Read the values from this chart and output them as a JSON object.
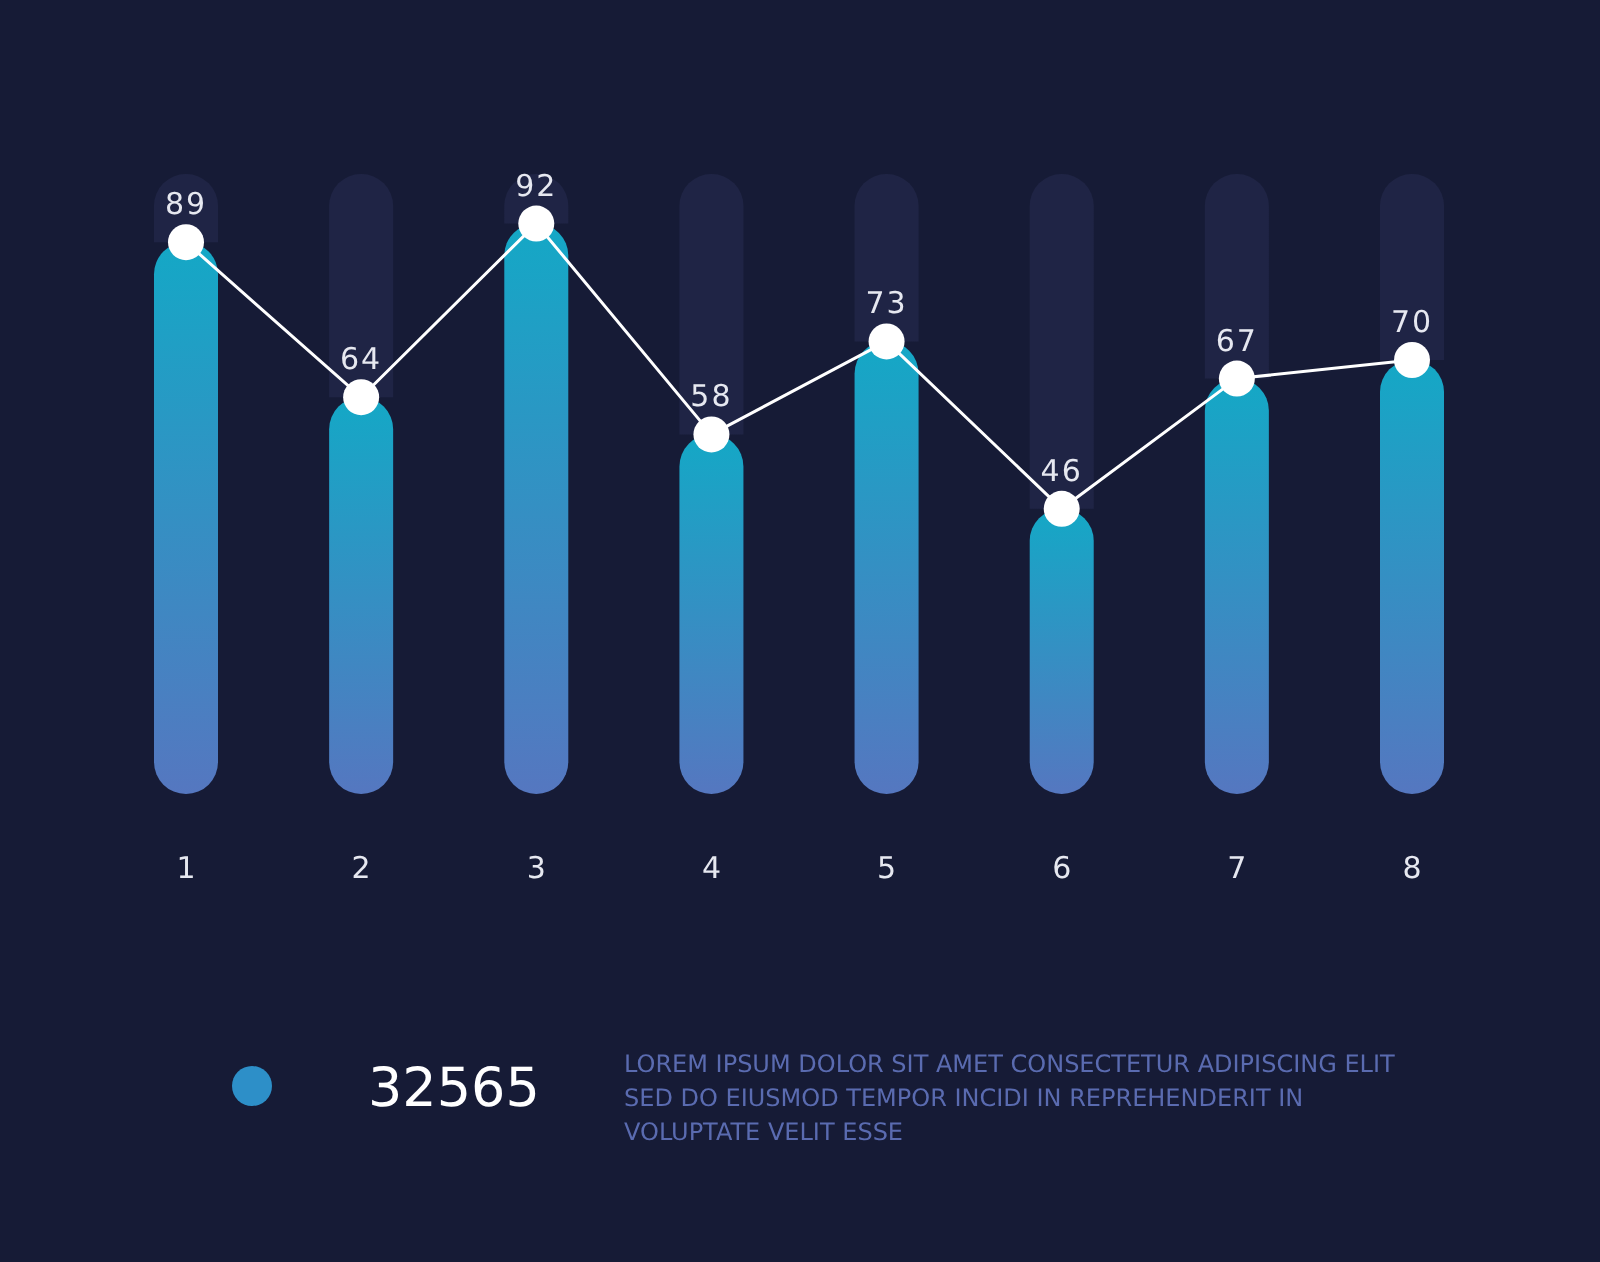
{
  "chart_data": {
    "type": "bar",
    "stacked": true,
    "categories": [
      "1",
      "2",
      "3",
      "4",
      "5",
      "6",
      "7",
      "8"
    ],
    "series": [
      {
        "type": "bar",
        "color": "#14a8c6",
        "values": [
          89,
          64,
          92,
          58,
          73,
          46,
          67,
          70
        ],
        "value_labels": [
          "89",
          "64",
          "92",
          "58",
          "73",
          "46",
          "67",
          "70"
        ]
      },
      {
        "color": "#1f2445",
        "values": [
          11,
          36,
          8,
          42,
          27,
          54,
          33,
          30
        ]
      },
      {
        "type": "line",
        "color": "#ffffff",
        "marker": "circle",
        "values": [
          89,
          64,
          92,
          58,
          73,
          46,
          67,
          70
        ]
      }
    ],
    "annotations": [
      "32565",
      "LOREM IPSUM DOLOR SIT AMET CONSECTETUR ADIPISCING ELIT SED DO EIUSMOD TEMPOR INCIDI IN REPREHENDERIT IN VOLUPTATE VELIT ESSE"
    ]
  }
}
